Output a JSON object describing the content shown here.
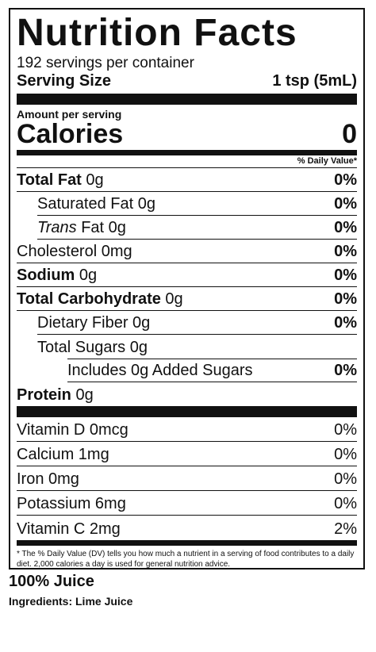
{
  "panel": {
    "title": "Nutrition Facts",
    "servings_per_container": "192 servings per container",
    "serving_size_label": "Serving Size",
    "serving_size_value": "1 tsp (5mL)",
    "amount_per_serving": "Amount per serving",
    "calories_label": "Calories",
    "calories_value": "0",
    "daily_value_header": "% Daily Value*",
    "nutrients": [
      {
        "name": "Total Fat",
        "amount": " 0g",
        "pct": "0%"
      },
      {
        "name": "Saturated Fat",
        "amount": " 0g",
        "pct": "0%"
      },
      {
        "name": "Trans",
        "name_rest": " Fat 0g",
        "pct": "0%"
      },
      {
        "name": "Cholesterol",
        "amount": " 0mg",
        "pct": "0%"
      },
      {
        "name": "Sodium",
        "amount": " 0g",
        "pct": "0%"
      },
      {
        "name": "Total Carbohydrate",
        "amount": " 0g",
        "pct": "0%"
      },
      {
        "name": "Dietary Fiber",
        "amount": " 0g",
        "pct": "0%"
      },
      {
        "name": "Total Sugars",
        "amount": " 0g",
        "pct": ""
      },
      {
        "name": "Includes 0g Added Sugars",
        "amount": "",
        "pct": "0%"
      },
      {
        "name": "Protein",
        "amount": " 0g",
        "pct": ""
      }
    ],
    "vitamins": [
      {
        "label": "Vitamin D 0mcg",
        "pct": "0%"
      },
      {
        "label": "Calcium 1mg",
        "pct": "0%"
      },
      {
        "label": "Iron 0mg",
        "pct": "0%"
      },
      {
        "label": "Potassium 6mg",
        "pct": "0%"
      },
      {
        "label": "Vitamin C 2mg",
        "pct": "2%"
      }
    ],
    "footnote": "* The % Daily Value (DV) tells you how much a nutrient in a serving of food contributes to a daily diet. 2,000 calories a day is used for general nutrition advice."
  },
  "below": {
    "juice_label": "100% Juice",
    "ingredients": "Ingredients: Lime Juice"
  }
}
